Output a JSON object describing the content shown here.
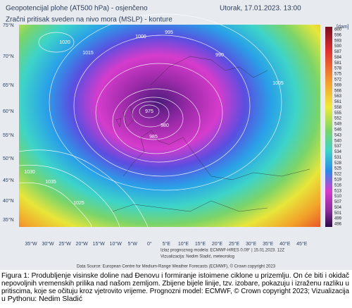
{
  "header": {
    "line1": "Geopotencijal plohe (AT500 hPa) - osjenčeno",
    "line2": "Zračni pritisak sveden na nivo mora (MSLP) - konture",
    "date": "Utorak, 17.01.2023. 13:00"
  },
  "colorbar": {
    "unit": "[dam]",
    "labels": [
      "600",
      "596",
      "593",
      "590",
      "587",
      "584",
      "581",
      "578",
      "575",
      "572",
      "569",
      "566",
      "563",
      "561",
      "558",
      "555",
      "552",
      "549",
      "546",
      "543",
      "540",
      "537",
      "534",
      "531",
      "528",
      "525",
      "522",
      "519",
      "516",
      "513",
      "510",
      "507",
      "504",
      "501",
      "499",
      "496"
    ]
  },
  "latitudes": [
    "75°N",
    "70°N",
    "65°N",
    "60°N",
    "55°N",
    "50°N",
    "45°N",
    "40°N",
    "35°N"
  ],
  "longitudes": [
    "35°W",
    "30°W",
    "25°W",
    "20°W",
    "15°W",
    "10°W",
    "5°W",
    "0°",
    "5°E",
    "10°E",
    "15°E",
    "20°E",
    "25°E",
    "30°E",
    "35°E",
    "40°E",
    "45°E"
  ],
  "isobar_labels": [
    "1020",
    "1015",
    "1000",
    "995",
    "990",
    "1005",
    "975",
    "980",
    "985",
    "1030",
    "1035",
    "1025"
  ],
  "notes": {
    "model": "Izlaz prognoznog modela: ECMWF-HRES 0.09° | 15.01.2023. 12Z",
    "author": "Vizualizacija: Nedim Sladić, meteorolog",
    "source": "Data Source: European Centre for Medium-Range Weather Forecasts (ECMWF), © Crown copyright 2023"
  },
  "caption": [
    "Figura 1: Produbljenje visinske doline nad Đenovu i formiranje istoimene ciklone u prizemlju. On će biti i okidač",
    "nepovoljnih vremenskih prilika nad našom zemljom. Zbijene bijele linije, tzv. izobare, pokazuju i izraženu razliku u",
    "pritiscima, koje se očituju kroz vjetrovito vrijeme. Prognozni model: ECMWF, © Crown copyright 2023; Vizualizacija",
    "u Pythonu: Nedim Sladić"
  ]
}
